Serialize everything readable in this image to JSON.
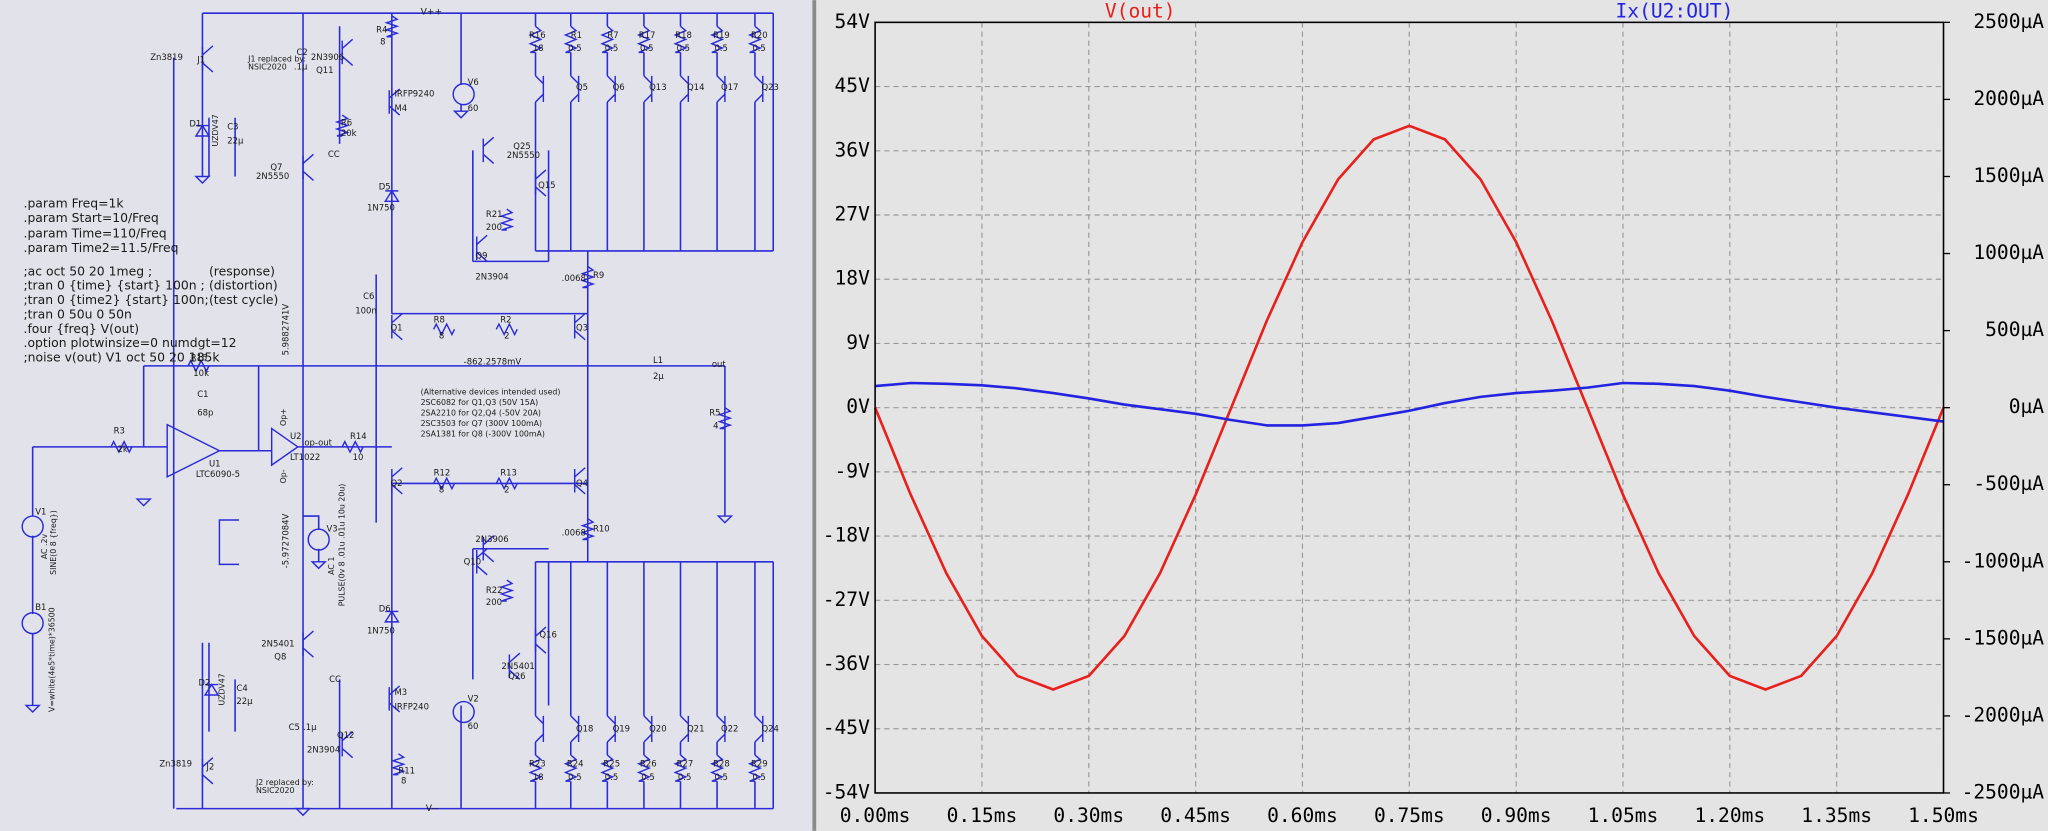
{
  "schematic": {
    "labels": [
      "V++",
      "V--",
      ".param Freq=1k",
      ".param Start=10/Freq",
      ".param Time=110/Freq",
      ".param Time2=11.5/Freq",
      ";ac oct 50 20 1meg ;",
      "(response)",
      ";tran 0 {time} {start} 100n ;",
      "(distortion)",
      ";tran 0 {time2} {start} 100n;",
      "(test cycle)",
      ";tran 0 50u 0 50n",
      ".four {freq} V(out)",
      ".option plotwinsize=0 numdgt=12",
      ";noise v(out) V1 oct 50 20 185k",
      "Zn3819",
      "J1",
      "J1 replaced by:",
      "NSIC2020",
      "D1",
      "UZDV47",
      "C3",
      "22µ",
      "C2",
      ".1µ",
      "2N3906",
      "Q11",
      "R4",
      "8",
      "IRFP9240",
      "M4",
      "R6",
      "20k",
      "CC",
      "Q7",
      "2N5550",
      "D5",
      "1N750",
      "V6",
      "60",
      "R16",
      "18",
      "R1",
      "0.5",
      "R7",
      "0.5",
      "R17",
      "0.5",
      "R18",
      "0.5",
      "R19",
      "0.5",
      "R20",
      "0.5",
      "Q5",
      "Q6",
      "Q13",
      "Q14",
      "Q17",
      "Q23",
      "Q25",
      "2N5550",
      "Q15",
      "R21",
      "200",
      "Q9",
      "2N3904",
      ".0068",
      "R9",
      "C6",
      "100n",
      "5.9882741V",
      "Q1",
      "R8",
      "8",
      "R2",
      "2",
      "Q3",
      "-862.2578mV",
      "L1",
      "2µ",
      "out",
      "R15",
      "10k",
      "C1",
      "68p",
      "R3",
      "2k",
      "U1",
      "LTC6090-5",
      "U2",
      "LT1022",
      "op-out",
      "R14",
      "10",
      "Op+",
      "Op-",
      "(Alternative devices intended used)",
      "2SC6082 for Q1,Q3  (50V  15A)",
      "2SA2210 for Q2,Q4  (-50V  20A)",
      "2SC3503 for Q7      (300V 100mA)",
      "2SA1381 for Q8      (-300V 100mA)",
      "R5",
      "4",
      "V1",
      "AC .2v",
      "SINE(0 8 {freq})",
      "V3",
      "AC 1",
      "PULSE(0v 8 .01u .01u 10u 20u)",
      "-5.9727084V",
      "Q2",
      "R12",
      "8",
      "R13",
      "2",
      "Q4",
      ".0068",
      "R10",
      "2N3906",
      "Q10",
      "R22",
      "200",
      "D6",
      "1N750",
      "Q16",
      "2N5401",
      "Q26",
      "B1",
      "V=white(4e5*time)*36500",
      "D2",
      "UZDV47",
      "C4",
      "22µ",
      "2N5401",
      "Q8",
      "CC",
      "C5",
      ".1µ",
      "Q12",
      "2N3904",
      "M3",
      "IRFP240",
      "V2",
      "60",
      "Zn3819",
      "J2",
      "J2 replaced by:",
      "NSIC2020",
      "R11",
      "8",
      "R23",
      "18",
      "R24",
      "0.5",
      "R25",
      "0.5",
      "R26",
      "0.5",
      "R27",
      "0.5",
      "R28",
      "0.5",
      "R29",
      "0.5",
      "Q18",
      "Q19",
      "Q20",
      "Q21",
      "Q22",
      "Q24"
    ]
  },
  "chart_data": {
    "type": "line",
    "x": [
      0,
      0.05,
      0.1,
      0.15,
      0.2,
      0.25,
      0.3,
      0.35,
      0.4,
      0.45,
      0.5,
      0.55,
      0.6,
      0.65,
      0.7,
      0.75,
      0.8,
      0.85,
      0.9,
      0.95,
      1.0,
      1.05,
      1.1,
      1.15,
      1.2,
      1.25,
      1.3,
      1.35,
      1.4,
      1.45,
      1.5
    ],
    "series": [
      {
        "name": "V(out)",
        "color": "#e8201c",
        "axis": "y",
        "values": [
          0,
          -12.2,
          -23.2,
          -32.0,
          -37.6,
          -39.5,
          -37.6,
          -32.0,
          -23.2,
          -12.2,
          0,
          12.2,
          23.2,
          32.0,
          37.6,
          39.5,
          37.6,
          32.0,
          23.2,
          12.2,
          0,
          -12.2,
          -23.2,
          -32.0,
          -37.6,
          -39.5,
          -37.6,
          -32.0,
          -23.2,
          -12.2,
          0
        ]
      },
      {
        "name": "Ix(U2:OUT)",
        "color": "#2323e0",
        "axis": "y2",
        "values": [
          140,
          160,
          155,
          145,
          125,
          95,
          60,
          20,
          -10,
          -40,
          -80,
          -115,
          -115,
          -100,
          -60,
          -20,
          30,
          70,
          95,
          110,
          130,
          160,
          155,
          140,
          110,
          70,
          35,
          0,
          -30,
          -60,
          -90
        ]
      }
    ],
    "xlim": [
      0,
      1.5
    ],
    "xticks": [
      {
        "value": 0,
        "label": "0.00ms"
      },
      {
        "value": 0.15,
        "label": "0.15ms"
      },
      {
        "value": 0.3,
        "label": "0.30ms"
      },
      {
        "value": 0.45,
        "label": "0.45ms"
      },
      {
        "value": 0.6,
        "label": "0.60ms"
      },
      {
        "value": 0.75,
        "label": "0.75ms"
      },
      {
        "value": 0.9,
        "label": "0.90ms"
      },
      {
        "value": 1.05,
        "label": "1.05ms"
      },
      {
        "value": 1.2,
        "label": "1.20ms"
      },
      {
        "value": 1.35,
        "label": "1.35ms"
      },
      {
        "value": 1.5,
        "label": "1.50ms"
      }
    ],
    "ylim": [
      -54,
      54
    ],
    "yticks": [
      {
        "value": -54,
        "label": "-54V"
      },
      {
        "value": -45,
        "label": "-45V"
      },
      {
        "value": -36,
        "label": "-36V"
      },
      {
        "value": -27,
        "label": "-27V"
      },
      {
        "value": -18,
        "label": "-18V"
      },
      {
        "value": -9,
        "label": "-9V"
      },
      {
        "value": 0,
        "label": "0V"
      },
      {
        "value": 9,
        "label": "9V"
      },
      {
        "value": 18,
        "label": "18V"
      },
      {
        "value": 27,
        "label": "27V"
      },
      {
        "value": 36,
        "label": "36V"
      },
      {
        "value": 45,
        "label": "45V"
      },
      {
        "value": 54,
        "label": "54V"
      }
    ],
    "y2lim": [
      -2500,
      2500
    ],
    "y2ticks": [
      {
        "value": -2500,
        "label": "-2500µA"
      },
      {
        "value": -2000,
        "label": "-2000µA"
      },
      {
        "value": -1500,
        "label": "-1500µA"
      },
      {
        "value": -1000,
        "label": "-1000µA"
      },
      {
        "value": -500,
        "label": "-500µA"
      },
      {
        "value": 0,
        "label": "0µA"
      },
      {
        "value": 500,
        "label": "500µA"
      },
      {
        "value": 1000,
        "label": "1000µA"
      },
      {
        "value": 1500,
        "label": "1500µA"
      },
      {
        "value": 2000,
        "label": "2000µA"
      },
      {
        "value": 2500,
        "label": "2500µA"
      }
    ],
    "grid": true
  }
}
